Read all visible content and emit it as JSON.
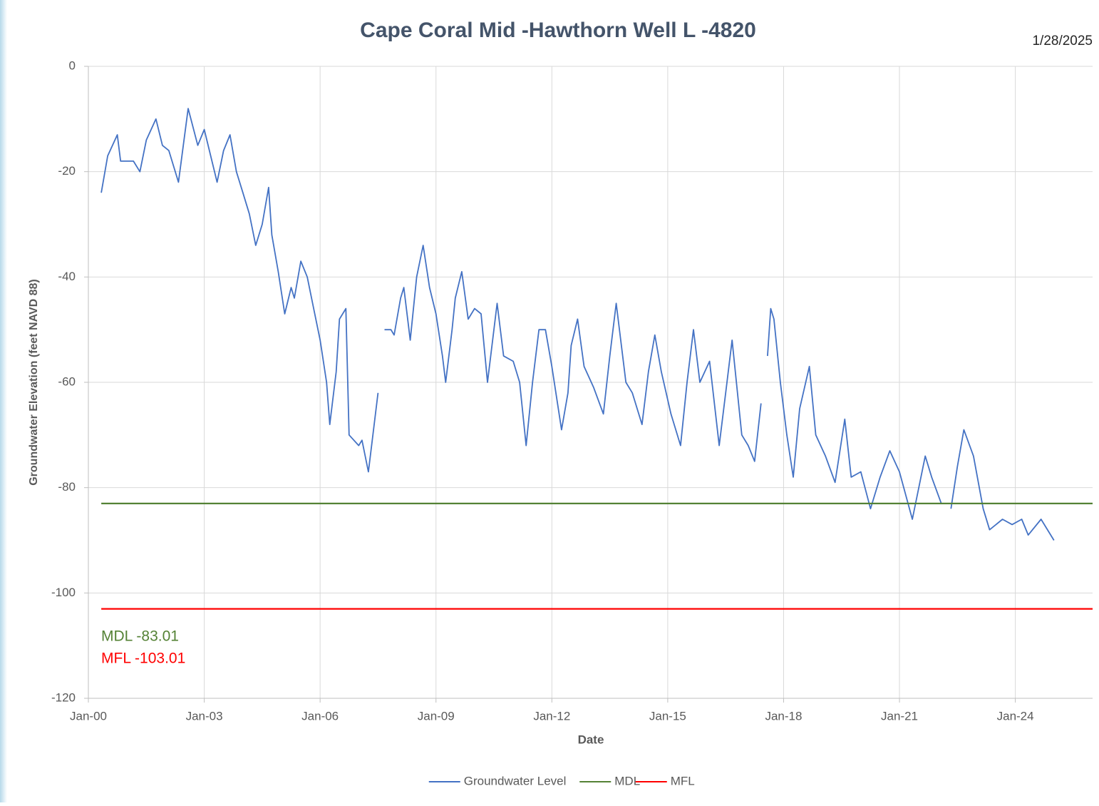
{
  "chart_data": {
    "type": "line",
    "title": "Cape Coral Mid -Hawthorn Well L -4820",
    "subtitle": "1/28/2025",
    "x_label": "Date",
    "y_label": "Groundwater Elevation (feet NAVD 88)",
    "xlim": [
      "2000-01",
      "2026-01"
    ],
    "xticks": [
      {
        "value": "2000-01",
        "label": "Jan-00"
      },
      {
        "value": "2003-01",
        "label": "Jan-03"
      },
      {
        "value": "2006-01",
        "label": "Jan-06"
      },
      {
        "value": "2009-01",
        "label": "Jan-09"
      },
      {
        "value": "2012-01",
        "label": "Jan-12"
      },
      {
        "value": "2015-01",
        "label": "Jan-15"
      },
      {
        "value": "2018-01",
        "label": "Jan-18"
      },
      {
        "value": "2021-01",
        "label": "Jan-21"
      },
      {
        "value": "2024-01",
        "label": "Jan-24"
      }
    ],
    "ylim": [
      -120,
      0
    ],
    "yticks": [
      0,
      -20,
      -40,
      -60,
      -80,
      -100,
      -120
    ],
    "grid": true,
    "legend": "bottom",
    "series": [
      {
        "name": "Groundwater Level",
        "color": "#4472c4",
        "x": [
          "2000-05",
          "2000-07",
          "2000-10",
          "2000-11",
          "2001-03",
          "2001-05",
          "2001-07",
          "2001-10",
          "2001-12",
          "2002-02",
          "2002-05",
          "2002-08",
          "2002-11",
          "2003-01",
          "2003-03",
          "2003-05",
          "2003-07",
          "2003-09",
          "2003-11",
          "2004-01",
          "2004-03",
          "2004-05",
          "2004-07",
          "2004-09",
          "2004-10",
          "2004-12",
          "2005-02",
          "2005-04",
          "2005-05",
          "2005-07",
          "2005-09",
          "2005-11",
          "2006-01",
          "2006-03",
          "2006-04",
          "2006-06",
          "2006-07",
          "2006-09",
          "2006-10",
          "2007-01",
          "2007-02",
          "2007-04",
          "2007-05",
          "2007-07",
          "2007-08",
          "2007-09",
          "2007-11",
          "2007-12",
          "2008-02",
          "2008-03",
          "2008-05",
          "2008-07",
          "2008-09",
          "2008-11",
          "2009-01",
          "2009-03",
          "2009-04",
          "2009-06",
          "2009-07",
          "2009-09",
          "2009-11",
          "2010-01",
          "2010-03",
          "2010-05",
          "2010-08",
          "2010-10",
          "2011-01",
          "2011-03",
          "2011-05",
          "2011-07",
          "2011-09",
          "2011-11",
          "2012-01",
          "2012-04",
          "2012-06",
          "2012-07",
          "2012-09",
          "2012-11",
          "2013-02",
          "2013-05",
          "2013-07",
          "2013-09",
          "2013-12",
          "2014-02",
          "2014-05",
          "2014-07",
          "2014-09",
          "2014-11",
          "2015-02",
          "2015-05",
          "2015-07",
          "2015-09",
          "2015-11",
          "2016-02",
          "2016-05",
          "2016-07",
          "2016-09",
          "2016-12",
          "2017-02",
          "2017-04",
          "2017-06",
          "2017-07",
          "2017-08",
          "2017-09",
          "2017-10",
          "2017-12",
          "2018-02",
          "2018-04",
          "2018-06",
          "2018-09",
          "2018-11",
          "2019-02",
          "2019-05",
          "2019-08",
          "2019-10",
          "2020-01",
          "2020-04",
          "2020-07",
          "2020-10",
          "2021-01",
          "2021-05",
          "2021-09",
          "2021-11",
          "2022-02",
          "2022-03",
          "2022-05",
          "2022-07",
          "2022-09",
          "2022-12",
          "2023-03",
          "2023-05",
          "2023-09",
          "2023-12",
          "2024-03",
          "2024-05",
          "2024-09",
          "2025-01"
        ],
        "values": [
          -24,
          -17,
          -13,
          -18,
          -18,
          -20,
          -14,
          -10,
          -15,
          -16,
          -22,
          -8,
          -15,
          -12,
          -17,
          -22,
          -16,
          -13,
          -20,
          -24,
          -28,
          -34,
          -30,
          -23,
          -32,
          -39,
          -47,
          -42,
          -44,
          -37,
          -40,
          -46,
          -52,
          -60,
          -68,
          -58,
          -48,
          -46,
          -70,
          -72,
          -71,
          -77,
          -72,
          -62,
          null,
          -50,
          -50,
          -51,
          -44,
          -42,
          -52,
          -40,
          -34,
          -42,
          -47,
          -55,
          -60,
          -50,
          -44,
          -39,
          -48,
          -46,
          -47,
          -60,
          -45,
          -55,
          -56,
          -60,
          -72,
          -60,
          -50,
          -50,
          -57,
          -69,
          -62,
          -53,
          -48,
          -57,
          -61,
          -66,
          -55,
          -45,
          -60,
          -62,
          -68,
          -58,
          -51,
          -58,
          -66,
          -72,
          -60,
          -50,
          -60,
          -56,
          -72,
          -62,
          -52,
          -70,
          -72,
          -75,
          -64,
          null,
          -55,
          -46,
          -48,
          -60,
          -70,
          -78,
          -65,
          -57,
          -70,
          -74,
          -79,
          -67,
          -78,
          -77,
          -84,
          -78,
          -73,
          -77,
          -86,
          -74,
          -78,
          -83,
          null,
          -84,
          -76,
          -69,
          -74,
          -84,
          -88,
          -86,
          -87,
          -86,
          -89,
          -86,
          -90
        ]
      },
      {
        "name": "MDL",
        "color": "#548235",
        "x": [
          "2000-05",
          "2026-01"
        ],
        "values": [
          -83.01,
          -83.01
        ]
      },
      {
        "name": "MFL",
        "color": "#ff0000",
        "x": [
          "2000-05",
          "2026-01"
        ],
        "values": [
          -103.01,
          -103.01
        ]
      }
    ],
    "annotations": [
      {
        "text": "MDL -83.01",
        "color": "#548235"
      },
      {
        "text": "MFL -103.01",
        "color": "#ff0000"
      }
    ]
  }
}
